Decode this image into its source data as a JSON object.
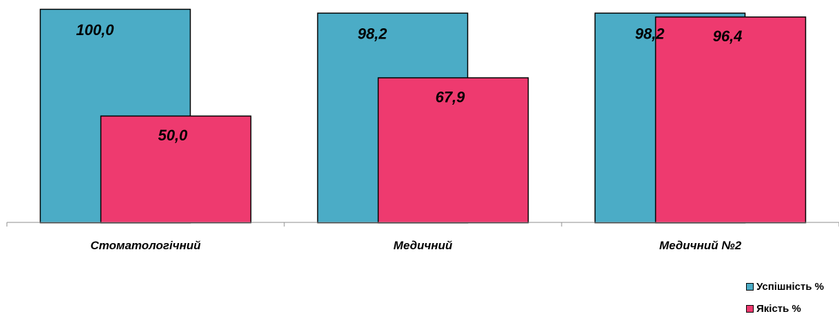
{
  "chart_data": {
    "type": "bar",
    "categories": [
      "Стоматологічний",
      "Медичний",
      "Медичний №2"
    ],
    "series": [
      {
        "name": "Успішність %",
        "values": [
          100.0,
          98.2,
          98.2
        ],
        "labels": [
          "100,0",
          "98,2",
          "98,2"
        ],
        "color": "#4BACC6"
      },
      {
        "name": "Якість %",
        "values": [
          50.0,
          67.9,
          96.4
        ],
        "labels": [
          "50,0",
          "67,9",
          "96,4"
        ],
        "color": "#EE3A6F"
      }
    ],
    "ylim": [
      0,
      100
    ],
    "grid": false,
    "legend_position": "bottom-right",
    "overlap": true
  }
}
